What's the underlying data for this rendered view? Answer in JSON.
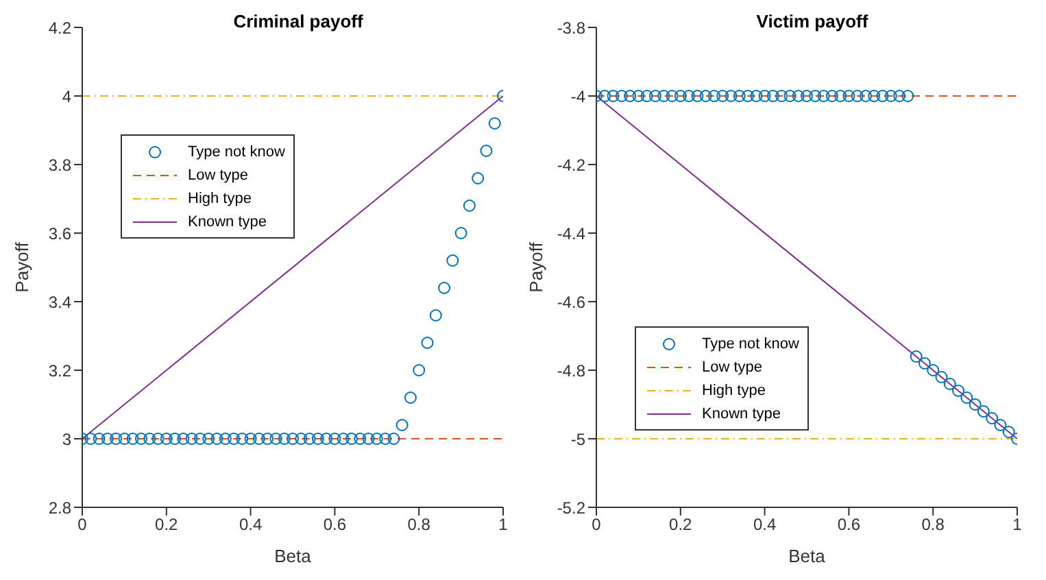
{
  "chart_data": [
    {
      "type": "scatter",
      "title": "Criminal payoff",
      "xlabel": "Beta",
      "ylabel": "Payoff",
      "xlim": [
        0,
        1
      ],
      "xticks": [
        0,
        0.2,
        0.4,
        0.6,
        0.8,
        1
      ],
      "ylim": [
        2.8,
        4.2
      ],
      "yticks": [
        2.8,
        3,
        3.2,
        3.4,
        3.6,
        3.8,
        4,
        4.2
      ],
      "grid": false,
      "legend": "top left",
      "series": [
        {
          "name": "Type not know",
          "marker": "circle",
          "color": "#0072bd",
          "x": [
            0,
            0.02,
            0.04,
            0.06,
            0.08,
            0.1,
            0.12,
            0.14,
            0.16,
            0.18,
            0.2,
            0.22,
            0.24,
            0.26,
            0.28,
            0.3,
            0.32,
            0.34,
            0.36,
            0.38,
            0.4,
            0.42,
            0.44,
            0.46,
            0.48,
            0.5,
            0.52,
            0.54,
            0.56,
            0.58,
            0.6,
            0.62,
            0.64,
            0.66,
            0.68,
            0.7,
            0.72,
            0.74,
            0.76,
            0.78,
            0.8,
            0.82,
            0.84,
            0.86,
            0.88,
            0.9,
            0.92,
            0.94,
            0.96,
            0.98,
            1
          ],
          "values": [
            3,
            3,
            3,
            3,
            3,
            3,
            3,
            3,
            3,
            3,
            3,
            3,
            3,
            3,
            3,
            3,
            3,
            3,
            3,
            3,
            3,
            3,
            3,
            3,
            3,
            3,
            3,
            3,
            3,
            3,
            3,
            3,
            3,
            3,
            3,
            3,
            3,
            3,
            3.04,
            3.12,
            3.2,
            3.28,
            3.36,
            3.44,
            3.52,
            3.6,
            3.68,
            3.76,
            3.84,
            3.92,
            4
          ]
        },
        {
          "name": "Low type",
          "type": "line",
          "line_style": "dashed",
          "color": "#d95319",
          "x": [
            0,
            1
          ],
          "values": [
            3,
            3
          ]
        },
        {
          "name": "High type",
          "type": "line",
          "line_style": "dotted",
          "color": "#edb120",
          "x": [
            0,
            1
          ],
          "values": [
            4,
            4
          ]
        },
        {
          "name": "Known type",
          "type": "line",
          "line_style": "solid",
          "color": "#7e2f8e",
          "x": [
            0,
            1
          ],
          "values": [
            3,
            4
          ]
        }
      ]
    },
    {
      "type": "scatter",
      "title": "Victim payoff",
      "xlabel": "Beta",
      "ylabel": "Payoff",
      "xlim": [
        0,
        1
      ],
      "xticks": [
        0,
        0.2,
        0.4,
        0.6,
        0.8,
        1
      ],
      "ylim": [
        -5.2,
        -3.8
      ],
      "yticks": [
        -5.2,
        -5,
        -4.8,
        -4.6,
        -4.4,
        -4.2,
        -4,
        -3.8
      ],
      "grid": false,
      "legend": "left",
      "series": [
        {
          "name": "Type not know",
          "marker": "circle",
          "color": "#0072bd",
          "x": [
            0,
            0.02,
            0.04,
            0.06,
            0.08,
            0.1,
            0.12,
            0.14,
            0.16,
            0.18,
            0.2,
            0.22,
            0.24,
            0.26,
            0.28,
            0.3,
            0.32,
            0.34,
            0.36,
            0.38,
            0.4,
            0.42,
            0.44,
            0.46,
            0.48,
            0.5,
            0.52,
            0.54,
            0.56,
            0.58,
            0.6,
            0.62,
            0.64,
            0.66,
            0.68,
            0.7,
            0.72,
            0.74,
            0.76,
            0.78,
            0.8,
            0.82,
            0.84,
            0.86,
            0.88,
            0.9,
            0.92,
            0.94,
            0.96,
            0.98,
            1
          ],
          "values": [
            -4,
            -4,
            -4,
            -4,
            -4,
            -4,
            -4,
            -4,
            -4,
            -4,
            -4,
            -4,
            -4,
            -4,
            -4,
            -4,
            -4,
            -4,
            -4,
            -4,
            -4,
            -4,
            -4,
            -4,
            -4,
            -4,
            -4,
            -4,
            -4,
            -4,
            -4,
            -4,
            -4,
            -4,
            -4,
            -4,
            -4,
            -4,
            -4.76,
            -4.78,
            -4.8,
            -4.82,
            -4.84,
            -4.86,
            -4.88,
            -4.9,
            -4.92,
            -4.94,
            -4.96,
            -4.98,
            -5
          ]
        },
        {
          "name": "Low type",
          "type": "line",
          "line_style": "dashed",
          "color": "#d95319",
          "x": [
            0,
            1
          ],
          "values": [
            -4,
            -4
          ]
        },
        {
          "name": "High type",
          "type": "line",
          "line_style": "dotted",
          "color": "#edb120",
          "x": [
            0,
            1
          ],
          "values": [
            -5,
            -5
          ]
        },
        {
          "name": "Known type",
          "type": "line",
          "line_style": "solid",
          "color": "#7e2f8e",
          "x": [
            0,
            1
          ],
          "values": [
            -4,
            -5
          ]
        }
      ]
    }
  ]
}
